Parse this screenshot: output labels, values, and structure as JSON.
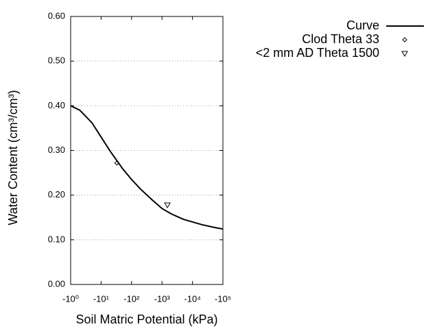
{
  "chart_data": {
    "type": "line",
    "x_label": "Soil Matric Potential (kPa)",
    "y_label": "Water Content (cm³/cm³)",
    "xscale": "log",
    "xlim": [
      -1,
      -100000
    ],
    "xticks": [
      {
        "value": -1,
        "label": "-10⁰"
      },
      {
        "value": -10,
        "label": "-10¹"
      },
      {
        "value": -100,
        "label": "-10²"
      },
      {
        "value": -1000,
        "label": "-10³"
      },
      {
        "value": -10000,
        "label": "-10⁴"
      },
      {
        "value": -100000,
        "label": "-10⁵"
      }
    ],
    "ylim": [
      0,
      0.6
    ],
    "yticks": [
      {
        "value": 0,
        "label": "0.00"
      },
      {
        "value": 0.1,
        "label": "0.10"
      },
      {
        "value": 0.2,
        "label": "0.20"
      },
      {
        "value": 0.3,
        "label": "0.30"
      },
      {
        "value": 0.4,
        "label": "0.40"
      },
      {
        "value": 0.5,
        "label": "0.50"
      },
      {
        "value": 0.6,
        "label": "0.60"
      }
    ],
    "grid": true,
    "legend": "top-right",
    "series": [
      {
        "name": "Curve",
        "color": "#000000",
        "marker": "line",
        "x": [
          -1,
          -2,
          -5,
          -10,
          -20,
          -50,
          -100,
          -200,
          -500,
          -1000,
          -2000,
          -5000,
          -10000,
          -20000,
          -50000,
          -100000
        ],
        "values": [
          0.4,
          0.39,
          0.362,
          0.33,
          0.298,
          0.26,
          0.235,
          0.213,
          0.188,
          0.17,
          0.158,
          0.146,
          0.14,
          0.134,
          0.128,
          0.124
        ]
      },
      {
        "name": "Clod Theta 33",
        "color": "#000000",
        "marker": "diamond",
        "x": [
          -33
        ],
        "values": [
          0.272
        ]
      },
      {
        "name": "<2 mm AD Theta 1500",
        "color": "#000000",
        "marker": "triangle-down",
        "x": [
          -1500
        ],
        "values": [
          0.178
        ]
      }
    ]
  }
}
